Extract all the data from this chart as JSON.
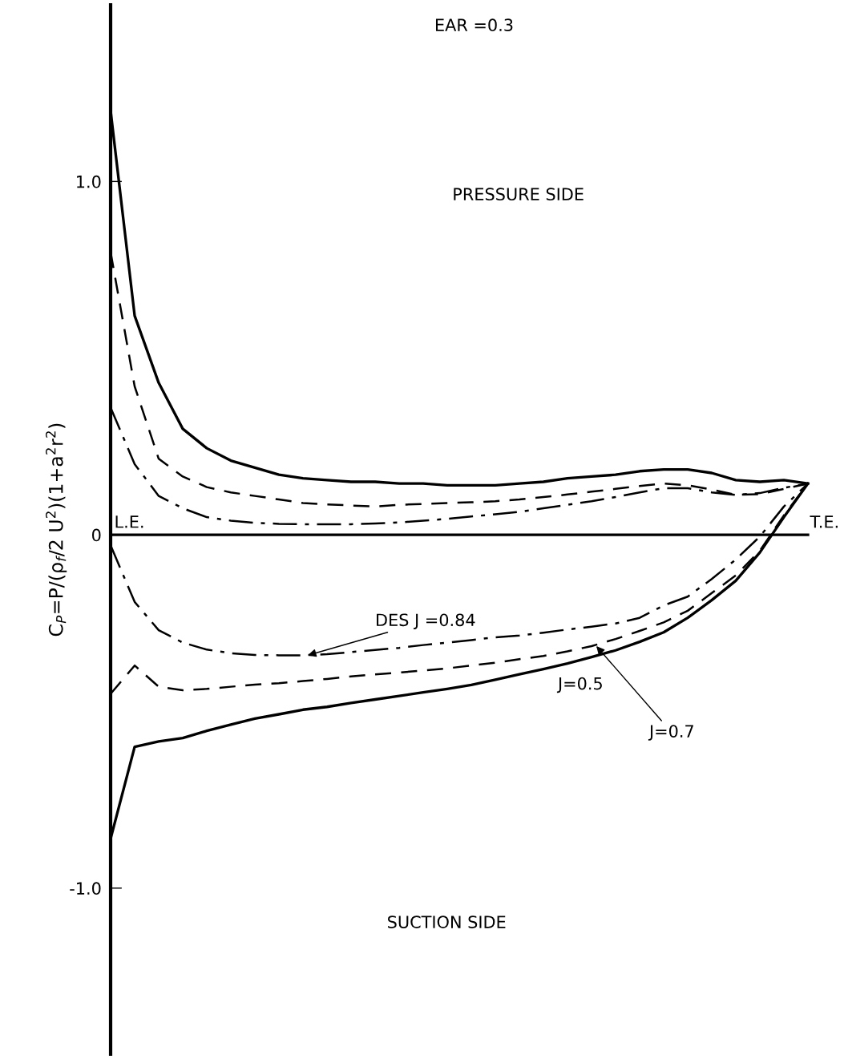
{
  "chart_data": {
    "type": "line",
    "title": "EAR =0.3",
    "ylabel": "C$_{P}$=P/(ρ$_{f}$/2 U$^{2}$)(1+a$^{2}$r$^{2}$)",
    "categories": [
      null,
      null,
      null,
      null,
      null,
      null,
      null,
      null,
      null,
      null,
      null,
      null,
      null,
      null,
      null,
      null,
      null,
      null,
      null,
      null,
      null,
      null,
      null,
      null,
      null,
      null,
      null,
      null,
      null,
      null
    ],
    "ylim": [
      -1.47,
      1.5
    ],
    "yticks": [
      {
        "value": 1.0,
        "label": "1.0"
      },
      0,
      {
        "value": -1.0,
        "label": "-1.0"
      }
    ],
    "tick_labels": "y",
    "legend": false,
    "grid": false,
    "series": [
      {
        "color": "#000000",
        "line_style": "solid",
        "values": [
          1.2,
          0.62,
          0.43,
          0.3,
          0.245,
          0.21,
          0.19,
          0.17,
          0.16,
          0.155,
          0.15,
          0.15,
          0.145,
          0.145,
          0.14,
          0.14,
          0.14,
          0.145,
          0.15,
          0.16,
          0.165,
          0.17,
          0.18,
          0.185,
          0.185,
          0.175,
          0.155,
          0.15,
          0.155,
          0.145
        ]
      },
      {
        "color": "#000000",
        "line_style": "dashed",
        "values": [
          0.8,
          0.42,
          0.215,
          0.165,
          0.135,
          0.12,
          0.11,
          0.1,
          0.09,
          0.086,
          0.083,
          0.08,
          0.085,
          0.087,
          0.09,
          0.092,
          0.095,
          0.1,
          0.107,
          0.114,
          0.122,
          0.13,
          0.138,
          0.145,
          0.14,
          0.128,
          0.113,
          0.115,
          0.13,
          0.145
        ]
      },
      {
        "color": "#000000",
        "line_style": "dashdot",
        "values": [
          0.36,
          0.2,
          0.11,
          0.075,
          0.05,
          0.04,
          0.034,
          0.031,
          0.03,
          0.03,
          0.03,
          0.032,
          0.035,
          0.04,
          0.045,
          0.052,
          0.058,
          0.065,
          0.075,
          0.085,
          0.095,
          0.107,
          0.12,
          0.132,
          0.132,
          0.12,
          0.113,
          0.118,
          0.133,
          0.145
        ]
      },
      {
        "name": "DES J =0.84",
        "color": "#000000",
        "line_style": "dashdot",
        "values": [
          -0.03,
          -0.19,
          -0.27,
          -0.305,
          -0.325,
          -0.335,
          -0.34,
          -0.341,
          -0.341,
          -0.338,
          -0.332,
          -0.326,
          -0.32,
          -0.312,
          -0.305,
          -0.298,
          -0.29,
          -0.285,
          -0.277,
          -0.268,
          -0.26,
          -0.251,
          -0.235,
          -0.2,
          -0.175,
          -0.125,
          -0.07,
          -0.005,
          0.08,
          0.145
        ]
      },
      {
        "name": "J=0.7",
        "color": "#000000",
        "line_style": "dashed",
        "values": [
          -0.45,
          -0.37,
          -0.43,
          -0.44,
          -0.436,
          -0.43,
          -0.424,
          -0.42,
          -0.414,
          -0.408,
          -0.401,
          -0.395,
          -0.39,
          -0.384,
          -0.378,
          -0.37,
          -0.362,
          -0.352,
          -0.343,
          -0.33,
          -0.315,
          -0.295,
          -0.272,
          -0.248,
          -0.215,
          -0.165,
          -0.115,
          -0.045,
          0.055,
          0.145
        ]
      },
      {
        "name": "J=0.5",
        "color": "#000000",
        "line_style": "solid",
        "values": [
          -0.86,
          -0.6,
          -0.585,
          -0.575,
          -0.555,
          -0.537,
          -0.52,
          -0.508,
          -0.495,
          -0.487,
          -0.476,
          -0.466,
          -0.456,
          -0.446,
          -0.436,
          -0.425,
          -0.41,
          -0.395,
          -0.38,
          -0.364,
          -0.346,
          -0.327,
          -0.303,
          -0.276,
          -0.235,
          -0.185,
          -0.13,
          -0.05,
          0.05,
          0.145
        ]
      }
    ],
    "ref_lines": [
      {
        "axis": "y",
        "value": 0,
        "color": "#000000",
        "line_style": "solid"
      }
    ],
    "annotations": [
      "PRESSURE SIDE",
      "SUCTION SIDE",
      "L.E.",
      "T.E."
    ]
  }
}
